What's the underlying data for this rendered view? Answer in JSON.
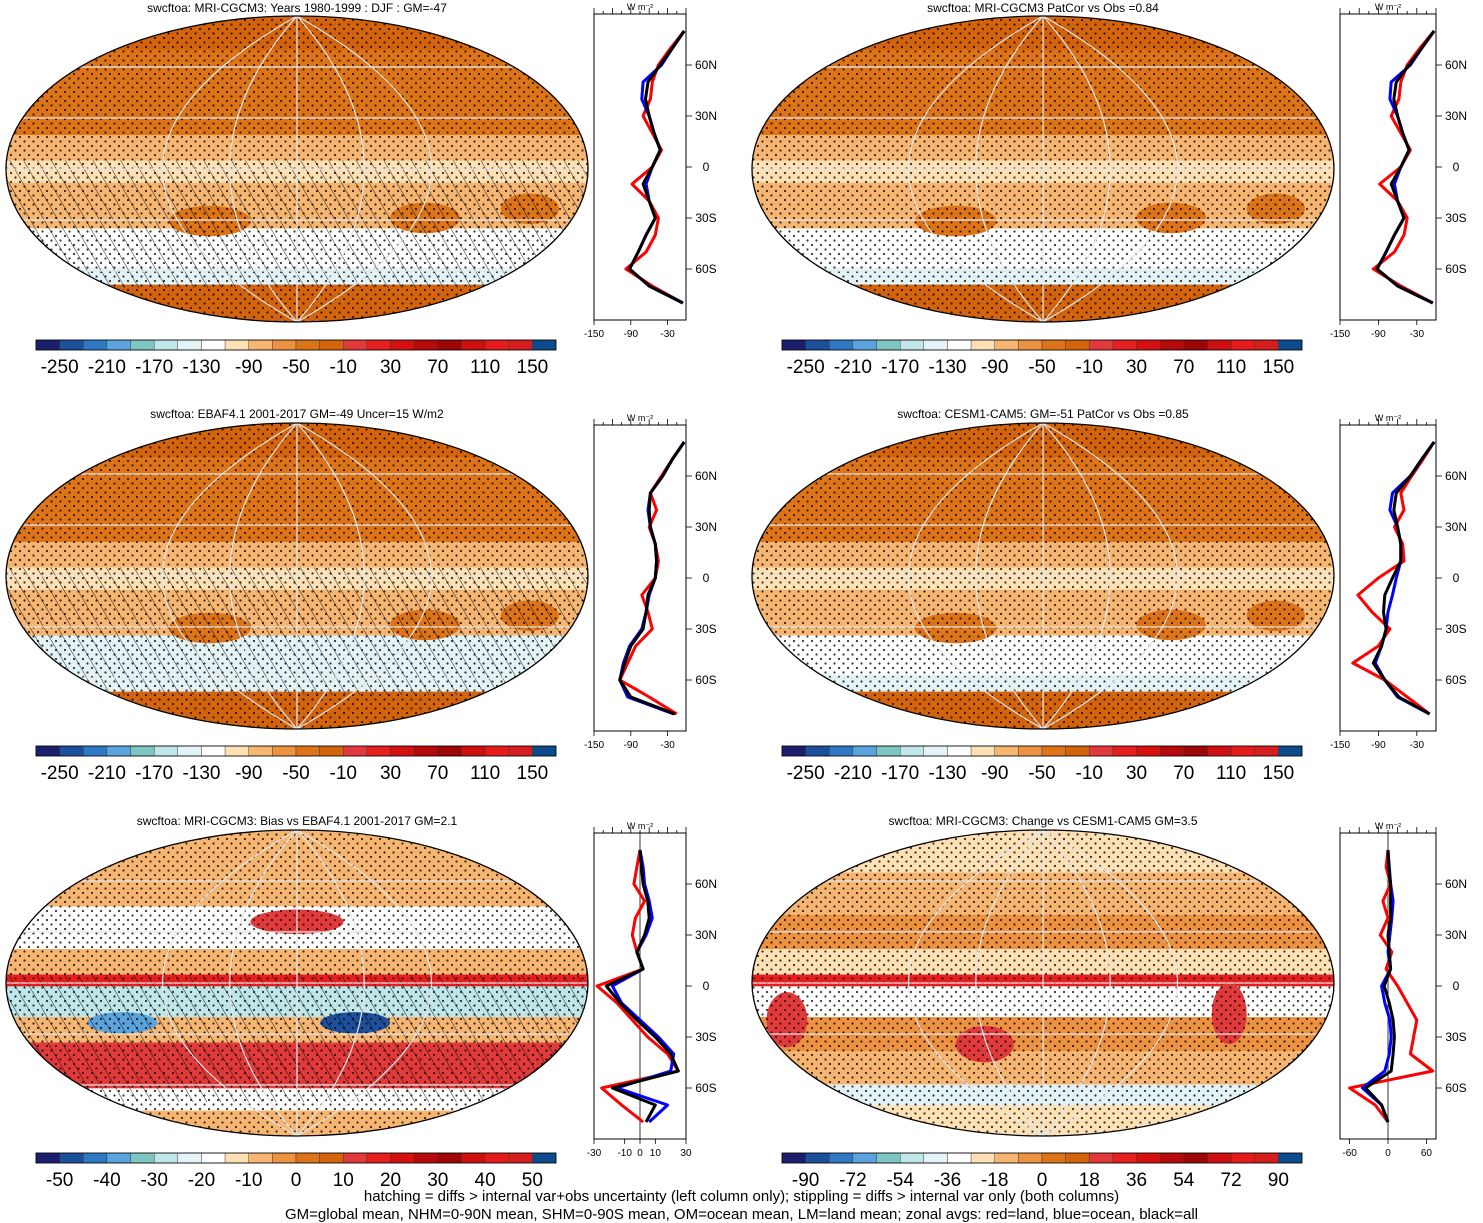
{
  "colorbar_main": {
    "labels": [
      "-250",
      "-210",
      "-170",
      "-130",
      "-90",
      "-50",
      "-10",
      "30",
      "70",
      "110",
      "150"
    ],
    "colors": [
      "#1b1f6e",
      "#1c4f9c",
      "#2f78c4",
      "#5ba3dc",
      "#7fc5c4",
      "#bfe7ea",
      "#e4f4f6",
      "#ffffff",
      "#fde0b4",
      "#f6b671",
      "#ec9240",
      "#de7418",
      "#d4640c",
      "#e23a3a",
      "#e51f1f",
      "#d41010",
      "#b80a0a",
      "#9e0606",
      "#cf1010",
      "#e61c1c",
      "#d61e1e",
      "#0d4c8c"
    ]
  },
  "colorbar_bias": {
    "labels": [
      "-50",
      "-40",
      "-30",
      "-20",
      "-10",
      "0",
      "10",
      "20",
      "30",
      "40",
      "50"
    ],
    "colors": [
      "#1b1f6e",
      "#1c4f9c",
      "#2f78c4",
      "#5ba3dc",
      "#7fc5c4",
      "#bfe7ea",
      "#e4f4f6",
      "#ffffff",
      "#fde0b4",
      "#f6b671",
      "#ec9240",
      "#de7418",
      "#d4640c",
      "#e23a3a",
      "#e51f1f",
      "#d41010",
      "#b80a0a",
      "#9e0606",
      "#cf1010",
      "#e61c1c",
      "#d61e1e",
      "#0d4c8c"
    ]
  },
  "colorbar_change": {
    "labels": [
      "-90",
      "-72",
      "-54",
      "-36",
      "-18",
      "0",
      "18",
      "36",
      "54",
      "72",
      "90"
    ],
    "colors": [
      "#1b1f6e",
      "#1c4f9c",
      "#2f78c4",
      "#5ba3dc",
      "#7fc5c4",
      "#bfe7ea",
      "#e4f4f6",
      "#ffffff",
      "#fde0b4",
      "#f6b671",
      "#ec9240",
      "#de7418",
      "#d4640c",
      "#e23a3a",
      "#e51f1f",
      "#d41010",
      "#b80a0a",
      "#9e0606",
      "#cf1010",
      "#e61c1c",
      "#d61e1e",
      "#0d4c8c"
    ]
  },
  "line_colors": {
    "land": "#ff0000",
    "ocean": "#0000ff",
    "all": "#000000"
  },
  "lat_ticks": [
    "60N",
    "30N",
    "0",
    "30S",
    "60S"
  ],
  "profile_unit": "W m⁻²",
  "chart_data": [
    {
      "type": "map",
      "title": "swcftoa: MRI-CGCM3: Years 1980-1999 : DJF : GM=-47",
      "colorbar": "colorbar_main",
      "hatching": true,
      "profile": {
        "xticks": [
          "-150",
          "-90",
          "-30"
        ],
        "xlim": [
          -150,
          0
        ],
        "zero_line": false,
        "lats": [
          80,
          70,
          60,
          50,
          40,
          30,
          20,
          10,
          0,
          -10,
          -20,
          -30,
          -40,
          -50,
          -60,
          -70,
          -80
        ],
        "land": [
          -3,
          -25,
          -45,
          -55,
          -58,
          -70,
          -55,
          -40,
          -55,
          -88,
          -60,
          -45,
          -50,
          -65,
          -98,
          -55,
          -5
        ],
        "ocean": [
          -3,
          -22,
          -40,
          -70,
          -72,
          -60,
          -52,
          -42,
          -55,
          -65,
          -60,
          -50,
          -65,
          -78,
          -92,
          -60,
          -5
        ],
        "all": [
          -3,
          -22,
          -42,
          -62,
          -66,
          -60,
          -52,
          -42,
          -55,
          -70,
          -60,
          -50,
          -65,
          -78,
          -92,
          -60,
          -5
        ]
      }
    },
    {
      "type": "map",
      "title": "swcftoa: MRI-CGCM3 PatCor vs Obs =0.84",
      "colorbar": "colorbar_main",
      "hatching": false,
      "profile": {
        "xticks": [
          "-150",
          "-90",
          "-30"
        ],
        "xlim": [
          -150,
          0
        ],
        "zero_line": false,
        "lats": [
          80,
          70,
          60,
          50,
          40,
          30,
          20,
          10,
          0,
          -10,
          -20,
          -30,
          -40,
          -50,
          -60,
          -70,
          -80
        ],
        "land": [
          -3,
          -25,
          -45,
          -55,
          -58,
          -70,
          -55,
          -40,
          -55,
          -88,
          -60,
          -45,
          -50,
          -65,
          -98,
          -55,
          -5
        ],
        "ocean": [
          -3,
          -22,
          -40,
          -70,
          -72,
          -60,
          -52,
          -42,
          -55,
          -65,
          -60,
          -50,
          -65,
          -78,
          -92,
          -60,
          -5
        ],
        "all": [
          -3,
          -22,
          -42,
          -62,
          -66,
          -60,
          -52,
          -42,
          -55,
          -70,
          -60,
          -50,
          -65,
          -78,
          -92,
          -60,
          -5
        ]
      }
    },
    {
      "type": "map",
      "title": "swcftoa: EBAF4.1 2001-2017 GM=-49 Uncer=15 W/m2",
      "colorbar": "colorbar_main",
      "hatching": true,
      "profile": {
        "xticks": [
          "-150",
          "-90",
          "-30"
        ],
        "xlim": [
          -150,
          0
        ],
        "zero_line": false,
        "lats": [
          80,
          70,
          60,
          50,
          40,
          30,
          20,
          10,
          0,
          -10,
          -20,
          -30,
          -40,
          -50,
          -60,
          -70,
          -80
        ],
        "land": [
          -3,
          -22,
          -40,
          -58,
          -48,
          -60,
          -50,
          -45,
          -50,
          -72,
          -62,
          -55,
          -82,
          -95,
          -108,
          -60,
          -15
        ],
        "ocean": [
          -3,
          -22,
          -38,
          -58,
          -62,
          -58,
          -50,
          -48,
          -50,
          -60,
          -65,
          -72,
          -92,
          -102,
          -108,
          -95,
          -20
        ],
        "all": [
          -3,
          -22,
          -38,
          -58,
          -60,
          -58,
          -50,
          -48,
          -50,
          -62,
          -65,
          -70,
          -90,
          -100,
          -108,
          -90,
          -18
        ]
      }
    },
    {
      "type": "map",
      "title": "swcftoa: CESM1-CAM5: GM=-51 PatCor vs Obs =0.85",
      "colorbar": "colorbar_main",
      "hatching": false,
      "profile": {
        "xticks": [
          "-150",
          "-90",
          "-30"
        ],
        "xlim": [
          -150,
          0
        ],
        "zero_line": false,
        "lats": [
          80,
          70,
          60,
          50,
          40,
          30,
          20,
          10,
          0,
          -10,
          -20,
          -30,
          -40,
          -50,
          -60,
          -70,
          -80
        ],
        "land": [
          -3,
          -20,
          -38,
          -55,
          -50,
          -65,
          -52,
          -50,
          -90,
          -122,
          -100,
          -72,
          -90,
          -130,
          -80,
          -45,
          -10
        ],
        "ocean": [
          -3,
          -22,
          -40,
          -68,
          -72,
          -60,
          -55,
          -55,
          -62,
          -68,
          -75,
          -78,
          -85,
          -95,
          -80,
          -60,
          -10
        ],
        "all": [
          -3,
          -22,
          -40,
          -62,
          -66,
          -60,
          -55,
          -55,
          -68,
          -80,
          -82,
          -78,
          -85,
          -98,
          -80,
          -58,
          -10
        ]
      }
    },
    {
      "type": "map",
      "title": "swcftoa: MRI-CGCM3: Bias vs EBAF4.1 2001-2017 GM=2.1",
      "colorbar": "colorbar_bias",
      "hatching": true,
      "profile": {
        "xticks": [
          "-30",
          "-10",
          "0",
          "10",
          "30"
        ],
        "xlim": [
          -30,
          30
        ],
        "zero_line": true,
        "lats": [
          80,
          70,
          60,
          50,
          40,
          30,
          20,
          10,
          0,
          -10,
          -20,
          -30,
          -40,
          -50,
          -60,
          -70,
          -80
        ],
        "land": [
          0,
          -2,
          -4,
          3,
          -3,
          -5,
          -2,
          2,
          -28,
          -15,
          -5,
          5,
          18,
          25,
          -25,
          -12,
          2
        ],
        "ocean": [
          0,
          2,
          3,
          6,
          8,
          4,
          -2,
          2,
          -18,
          -12,
          0,
          12,
          22,
          20,
          -15,
          18,
          6
        ],
        "all": [
          0,
          1,
          2,
          5,
          6,
          3,
          -2,
          2,
          -22,
          -13,
          -2,
          10,
          20,
          25,
          -18,
          10,
          4
        ]
      }
    },
    {
      "type": "map",
      "title": "swcftoa: MRI-CGCM3: Change vs CESM1-CAM5 GM=3.5",
      "colorbar": "colorbar_change",
      "hatching": false,
      "profile": {
        "xticks": [
          "-60",
          "0",
          "60"
        ],
        "xlim": [
          -75,
          75
        ],
        "zero_line": true,
        "lats": [
          80,
          70,
          60,
          50,
          40,
          30,
          20,
          10,
          0,
          -10,
          -20,
          -30,
          -40,
          -50,
          -60,
          -70,
          -80
        ],
        "land": [
          0,
          -3,
          4,
          -8,
          0,
          -12,
          6,
          -3,
          15,
          30,
          45,
          40,
          35,
          70,
          -60,
          -20,
          0
        ],
        "ocean": [
          0,
          2,
          4,
          8,
          6,
          3,
          0,
          4,
          -10,
          -5,
          3,
          5,
          2,
          -5,
          -40,
          -10,
          0
        ],
        "all": [
          0,
          1,
          4,
          4,
          4,
          0,
          2,
          4,
          -6,
          2,
          8,
          10,
          8,
          5,
          -35,
          -10,
          0
        ]
      }
    }
  ],
  "notes": {
    "line1": "hatching = diffs > internal var+obs uncertainty (left column only); stippling = diffs > internal var only (both columns)",
    "line2": "GM=global mean, NHM=0-90N mean, SHM=0-90S mean, OM=ocean mean, LM=land mean; zonal avgs: red=land, blue=ocean, black=all"
  }
}
